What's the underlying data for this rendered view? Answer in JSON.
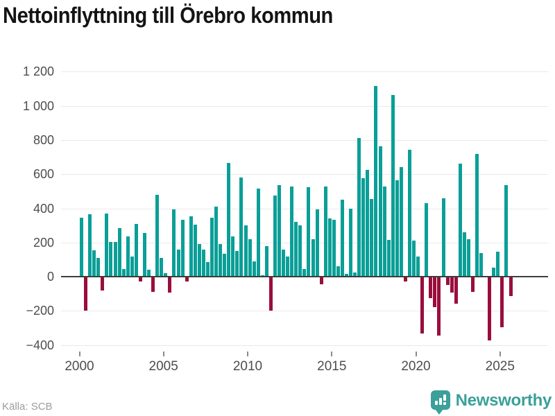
{
  "header": {
    "title": "Nettoinflyttning till Örebro kommun"
  },
  "footer": {
    "source": "Källa: SCB",
    "brand": "Newsworthy"
  },
  "colors": {
    "positive": "#0a9f97",
    "negative": "#9a0e3c",
    "brand_teal": "#3aa099",
    "gridline": "#e9e9e9",
    "zero_axis": "#3d3d3d",
    "axis_text": "#4d4d4d"
  },
  "chart_data": {
    "type": "bar",
    "title": "Nettoinflyttning till Örebro kommun",
    "xlabel": "",
    "ylabel": "",
    "ylim": [
      -400,
      1200
    ],
    "grid": true,
    "legend": "none",
    "y_ticks": [
      {
        "value": 1200,
        "label": "1 200"
      },
      {
        "value": 1000,
        "label": "1 000"
      },
      {
        "value": 800,
        "label": "800"
      },
      {
        "value": 600,
        "label": "600"
      },
      {
        "value": 400,
        "label": "400"
      },
      {
        "value": 200,
        "label": "200"
      },
      {
        "value": 0,
        "label": "0"
      },
      {
        "value": -200,
        "label": "−200"
      },
      {
        "value": -400,
        "label": "−400"
      }
    ],
    "x_ticks": [
      "2000",
      "2005",
      "2010",
      "2015",
      "2020",
      "2025"
    ],
    "categories": [
      "2000Q1",
      "2000Q2",
      "2000Q3",
      "2000Q4",
      "2001Q1",
      "2001Q2",
      "2001Q3",
      "2001Q4",
      "2002Q1",
      "2002Q2",
      "2002Q3",
      "2002Q4",
      "2003Q1",
      "2003Q2",
      "2003Q3",
      "2003Q4",
      "2004Q1",
      "2004Q2",
      "2004Q3",
      "2004Q4",
      "2005Q1",
      "2005Q2",
      "2005Q3",
      "2005Q4",
      "2006Q1",
      "2006Q2",
      "2006Q3",
      "2006Q4",
      "2007Q1",
      "2007Q2",
      "2007Q3",
      "2007Q4",
      "2008Q1",
      "2008Q2",
      "2008Q3",
      "2008Q4",
      "2009Q1",
      "2009Q2",
      "2009Q3",
      "2009Q4",
      "2010Q1",
      "2010Q2",
      "2010Q3",
      "2010Q4",
      "2011Q1",
      "2011Q2",
      "2011Q3",
      "2011Q4",
      "2012Q1",
      "2012Q2",
      "2012Q3",
      "2012Q4",
      "2013Q1",
      "2013Q2",
      "2013Q3",
      "2013Q4",
      "2014Q1",
      "2014Q2",
      "2014Q3",
      "2014Q4",
      "2015Q1",
      "2015Q2",
      "2015Q3",
      "2015Q4",
      "2016Q1",
      "2016Q2",
      "2016Q3",
      "2016Q4",
      "2017Q1",
      "2017Q2",
      "2017Q3",
      "2017Q4",
      "2018Q1",
      "2018Q2",
      "2018Q3",
      "2018Q4",
      "2019Q1",
      "2019Q2",
      "2019Q3",
      "2019Q4",
      "2020Q1",
      "2020Q2",
      "2020Q3",
      "2020Q4",
      "2021Q1",
      "2021Q2",
      "2021Q3",
      "2021Q4",
      "2022Q1",
      "2022Q2",
      "2022Q3",
      "2022Q4",
      "2023Q1",
      "2023Q2",
      "2023Q3",
      "2023Q4",
      "2024Q1",
      "2024Q2",
      "2024Q3",
      "2024Q4",
      "2025Q1",
      "2025Q2",
      "2025Q3"
    ],
    "values": [
      345,
      -195,
      365,
      155,
      110,
      -75,
      370,
      205,
      205,
      285,
      45,
      235,
      120,
      310,
      -25,
      255,
      40,
      -85,
      480,
      110,
      20,
      -90,
      395,
      160,
      335,
      -25,
      355,
      305,
      190,
      160,
      85,
      345,
      410,
      190,
      135,
      665,
      235,
      150,
      580,
      300,
      220,
      90,
      515,
      10,
      180,
      -195,
      475,
      535,
      160,
      120,
      530,
      320,
      300,
      45,
      525,
      220,
      395,
      -40,
      530,
      340,
      335,
      60,
      450,
      15,
      400,
      25,
      810,
      575,
      625,
      455,
      1115,
      765,
      530,
      215,
      1065,
      565,
      640,
      -25,
      745,
      210,
      120,
      -330,
      430,
      -120,
      -175,
      -340,
      460,
      -45,
      -90,
      -155,
      660,
      260,
      220,
      -85,
      720,
      140,
      0,
      -370,
      55,
      145,
      -290,
      535,
      -110
    ]
  }
}
